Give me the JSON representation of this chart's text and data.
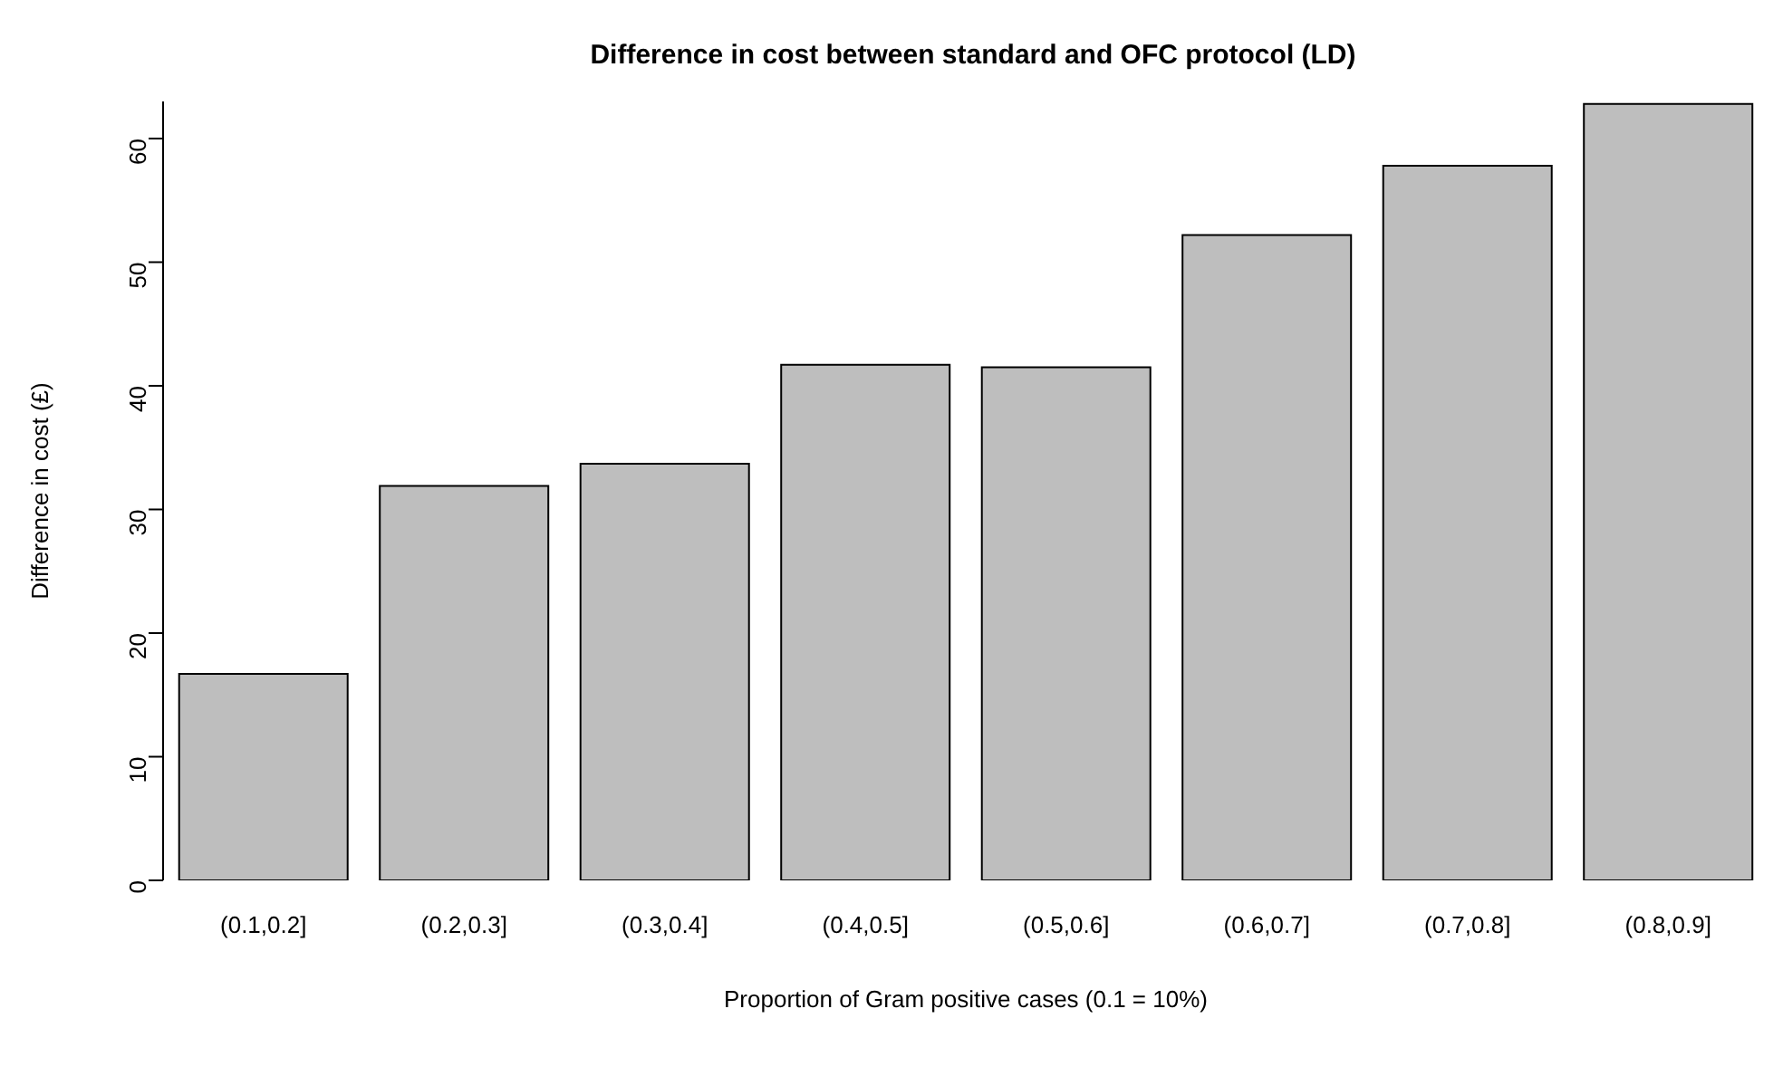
{
  "chart_data": {
    "type": "bar",
    "title": "Difference in cost between standard and OFC protocol (LD)",
    "xlabel": "Proportion of Gram positive cases (0.1 = 10%)",
    "ylabel": "Difference in cost (£)",
    "categories": [
      "(0.1,0.2]",
      "(0.2,0.3]",
      "(0.3,0.4]",
      "(0.4,0.5]",
      "(0.5,0.6]",
      "(0.6,0.7]",
      "(0.7,0.8]",
      "(0.8,0.9]"
    ],
    "values": [
      16.7,
      31.9,
      33.7,
      41.7,
      41.5,
      52.2,
      57.8,
      62.8
    ],
    "color": "#bebebe",
    "ylim": [
      0,
      63
    ],
    "yticks": [
      0,
      10,
      20,
      30,
      40,
      50,
      60
    ],
    "grid": false,
    "legend": false
  }
}
